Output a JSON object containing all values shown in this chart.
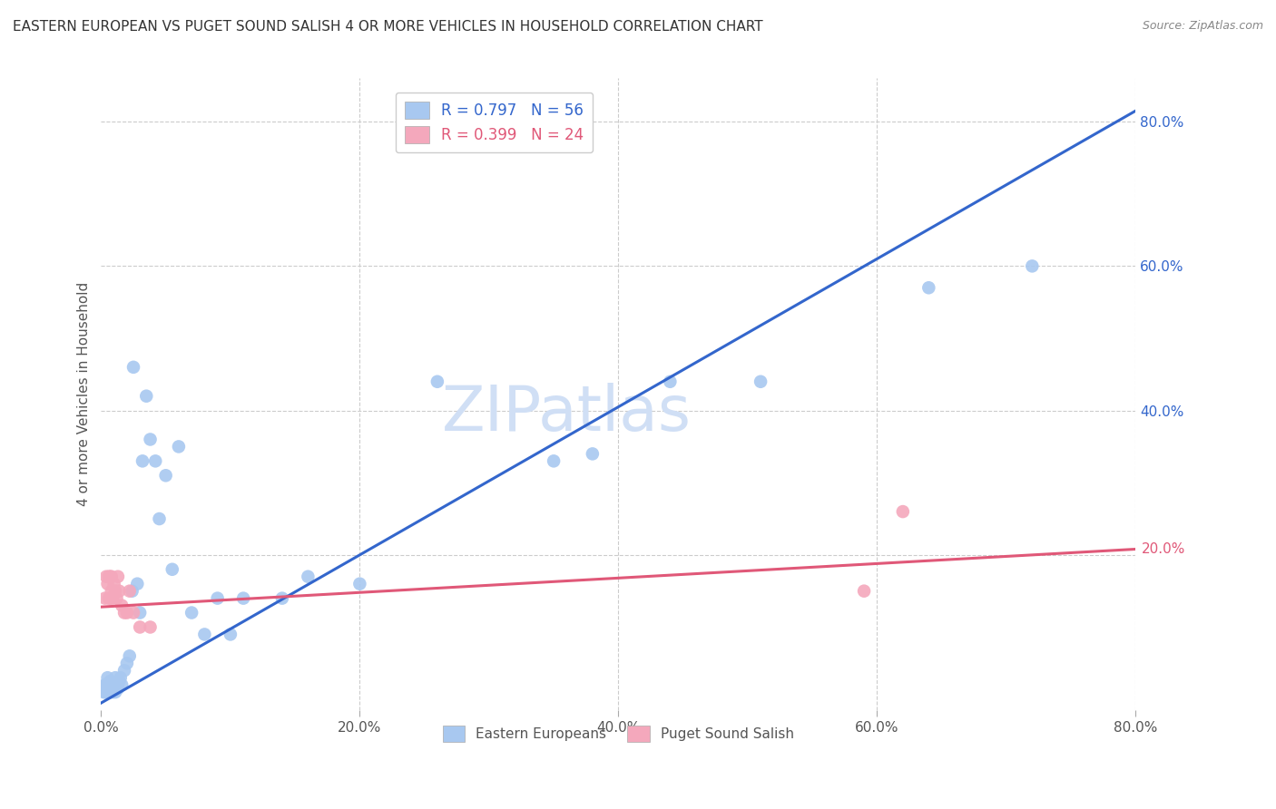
{
  "title": "EASTERN EUROPEAN VS PUGET SOUND SALISH 4 OR MORE VEHICLES IN HOUSEHOLD CORRELATION CHART",
  "source": "Source: ZipAtlas.com",
  "xlabel_ticks": [
    "0.0%",
    "20.0%",
    "40.0%",
    "60.0%",
    "80.0%"
  ],
  "ylabel_label": "4 or more Vehicles in Household",
  "right_ytick_labels_blue": [
    "80.0%",
    "60.0%",
    "40.0%",
    "20.0%"
  ],
  "right_ytick_values": [
    0.8,
    0.6,
    0.4,
    0.2
  ],
  "right_ytick_label_pink": "20.0%",
  "right_ytick_value_pink": 0.205,
  "xlim": [
    0.0,
    0.8
  ],
  "ylim": [
    -0.015,
    0.86
  ],
  "blue_scatter_x": [
    0.002,
    0.003,
    0.003,
    0.004,
    0.004,
    0.004,
    0.005,
    0.005,
    0.005,
    0.006,
    0.006,
    0.006,
    0.007,
    0.007,
    0.008,
    0.008,
    0.009,
    0.01,
    0.01,
    0.011,
    0.011,
    0.012,
    0.013,
    0.014,
    0.015,
    0.016,
    0.018,
    0.02,
    0.022,
    0.024,
    0.025,
    0.028,
    0.03,
    0.032,
    0.035,
    0.038,
    0.042,
    0.045,
    0.05,
    0.055,
    0.06,
    0.07,
    0.08,
    0.09,
    0.1,
    0.11,
    0.14,
    0.16,
    0.2,
    0.26,
    0.35,
    0.38,
    0.44,
    0.51,
    0.64,
    0.72
  ],
  "blue_scatter_y": [
    0.01,
    0.02,
    0.01,
    0.02,
    0.015,
    0.01,
    0.02,
    0.03,
    0.01,
    0.02,
    0.015,
    0.01,
    0.025,
    0.01,
    0.02,
    0.015,
    0.01,
    0.02,
    0.015,
    0.03,
    0.01,
    0.02,
    0.015,
    0.025,
    0.03,
    0.02,
    0.04,
    0.05,
    0.06,
    0.15,
    0.46,
    0.16,
    0.12,
    0.33,
    0.42,
    0.36,
    0.33,
    0.25,
    0.31,
    0.18,
    0.35,
    0.12,
    0.09,
    0.14,
    0.09,
    0.14,
    0.14,
    0.17,
    0.16,
    0.44,
    0.33,
    0.34,
    0.44,
    0.44,
    0.57,
    0.6
  ],
  "pink_scatter_x": [
    0.003,
    0.004,
    0.005,
    0.006,
    0.006,
    0.007,
    0.007,
    0.008,
    0.008,
    0.009,
    0.01,
    0.011,
    0.012,
    0.013,
    0.014,
    0.016,
    0.018,
    0.02,
    0.022,
    0.025,
    0.03,
    0.038,
    0.59,
    0.62
  ],
  "pink_scatter_y": [
    0.14,
    0.17,
    0.16,
    0.14,
    0.17,
    0.14,
    0.17,
    0.15,
    0.17,
    0.14,
    0.16,
    0.15,
    0.14,
    0.17,
    0.15,
    0.13,
    0.12,
    0.12,
    0.15,
    0.12,
    0.1,
    0.1,
    0.15,
    0.26
  ],
  "blue_line_x": [
    0.0,
    0.8
  ],
  "blue_line_y": [
    -0.005,
    0.815
  ],
  "pink_line_x": [
    0.0,
    0.8
  ],
  "pink_line_y": [
    0.128,
    0.208
  ],
  "legend_blue_R": "R = 0.797",
  "legend_blue_N": "N = 56",
  "legend_pink_R": "R = 0.399",
  "legend_pink_N": "N = 24",
  "legend_blue_label": "Eastern Europeans",
  "legend_pink_label": "Puget Sound Salish",
  "blue_color": "#a8c8f0",
  "blue_line_color": "#3366cc",
  "pink_color": "#f4a8bc",
  "pink_line_color": "#e05878",
  "background_color": "#ffffff",
  "grid_color": "#cccccc",
  "title_fontsize": 11,
  "axis_label_color": "#555555",
  "right_axis_color": "#3366cc",
  "right_axis_pink_color": "#e05878",
  "watermark_text": "ZIPatlas",
  "watermark_color": "#d0dff5"
}
